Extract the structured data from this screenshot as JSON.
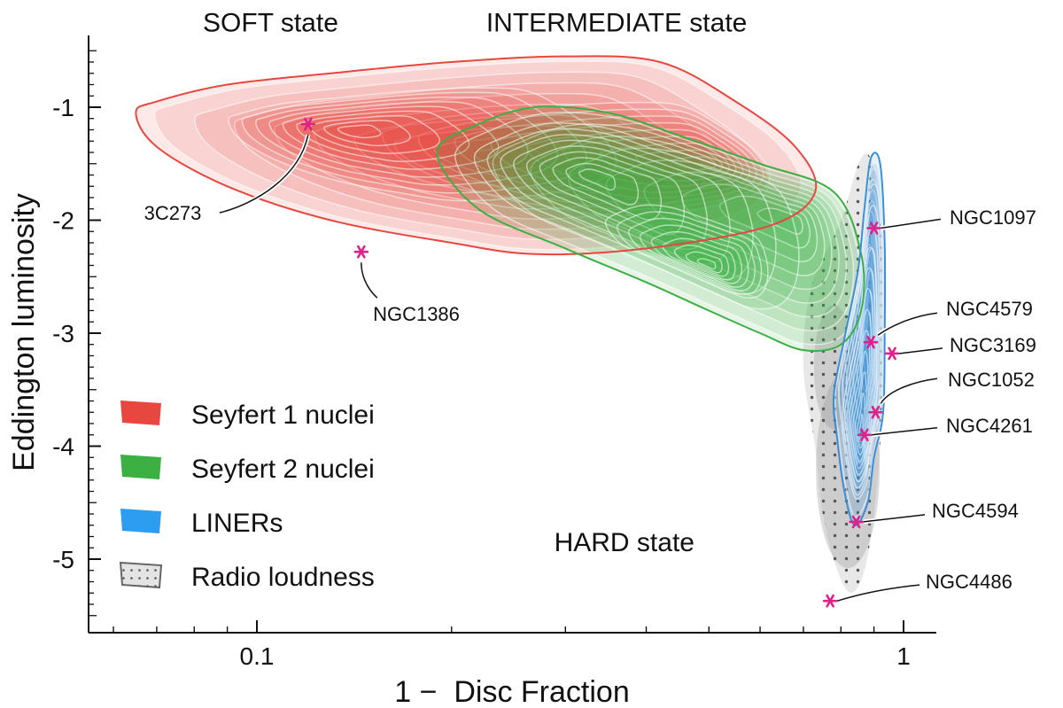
{
  "chart_data": {
    "type": "contour",
    "xlabel": "1 −  Disc Fraction",
    "ylabel": "Eddington luminosity",
    "xscale": "log",
    "xlim": [
      0.055,
      1.1
    ],
    "ylim": [
      -5.6,
      -0.45
    ],
    "xticks": [
      {
        "value": 0.1,
        "label": "0.1"
      },
      {
        "value": 1,
        "label": "1"
      }
    ],
    "yticks": [
      {
        "value": -1,
        "label": "-1"
      },
      {
        "value": -2,
        "label": "-2"
      },
      {
        "value": -3,
        "label": "-3"
      },
      {
        "value": -4,
        "label": "-4"
      },
      {
        "value": -5,
        "label": "-5"
      }
    ],
    "state_labels": [
      {
        "text": "SOFT state",
        "x": 0.105,
        "y": -0.25
      },
      {
        "text": "INTERMEDIATE state",
        "x": 0.36,
        "y": -0.25
      },
      {
        "text": "HARD state",
        "x": 0.37,
        "y": -4.85
      }
    ],
    "series": [
      {
        "name": "Seyfert 1 nuclei",
        "color": "#e8473f",
        "cores": [
          {
            "x": 0.25,
            "y": -1.45,
            "weight": 1.0
          },
          {
            "x": 0.5,
            "y": -1.5,
            "weight": 0.6
          },
          {
            "x": 0.14,
            "y": -1.2,
            "weight": 0.6
          }
        ],
        "outline": [
          [
            0.065,
            -1.05
          ],
          [
            0.07,
            -0.95
          ],
          [
            0.09,
            -0.8
          ],
          [
            0.13,
            -0.7
          ],
          [
            0.2,
            -0.6
          ],
          [
            0.3,
            -0.55
          ],
          [
            0.42,
            -0.6
          ],
          [
            0.55,
            -0.95
          ],
          [
            0.68,
            -1.35
          ],
          [
            0.73,
            -1.75
          ],
          [
            0.62,
            -2.05
          ],
          [
            0.4,
            -2.25
          ],
          [
            0.27,
            -2.3
          ],
          [
            0.2,
            -2.2
          ],
          [
            0.13,
            -2.0
          ],
          [
            0.09,
            -1.7
          ],
          [
            0.07,
            -1.35
          ]
        ]
      },
      {
        "name": "Seyfert 2 nuclei",
        "color": "#3cb043",
        "cores": [
          {
            "x": 0.68,
            "y": -2.0,
            "weight": 1.0
          },
          {
            "x": 0.33,
            "y": -1.6,
            "weight": 0.8
          },
          {
            "x": 0.5,
            "y": -2.4,
            "weight": 0.4
          }
        ],
        "outline": [
          [
            0.19,
            -1.4
          ],
          [
            0.22,
            -1.15
          ],
          [
            0.27,
            -1.0
          ],
          [
            0.35,
            -1.05
          ],
          [
            0.45,
            -1.25
          ],
          [
            0.6,
            -1.5
          ],
          [
            0.78,
            -1.75
          ],
          [
            0.86,
            -2.3
          ],
          [
            0.86,
            -2.8
          ],
          [
            0.8,
            -3.1
          ],
          [
            0.7,
            -3.15
          ],
          [
            0.6,
            -3.0
          ],
          [
            0.5,
            -2.8
          ],
          [
            0.4,
            -2.55
          ],
          [
            0.3,
            -2.25
          ],
          [
            0.22,
            -1.9
          ]
        ]
      },
      {
        "name": "LINERs",
        "color": "#3b8fd9",
        "cores": [
          {
            "x": 0.88,
            "y": -2.4,
            "weight": 0.9
          },
          {
            "x": 0.88,
            "y": -3.2,
            "weight": 1.0
          },
          {
            "x": 0.86,
            "y": -3.9,
            "weight": 0.7
          }
        ],
        "outline": [
          [
            0.89,
            -1.45
          ],
          [
            0.92,
            -1.5
          ],
          [
            0.935,
            -2.2
          ],
          [
            0.935,
            -3.0
          ],
          [
            0.93,
            -3.7
          ],
          [
            0.9,
            -4.1
          ],
          [
            0.88,
            -4.5
          ],
          [
            0.84,
            -4.7
          ],
          [
            0.81,
            -4.4
          ],
          [
            0.79,
            -3.95
          ],
          [
            0.78,
            -3.55
          ],
          [
            0.81,
            -3.05
          ],
          [
            0.85,
            -2.45
          ],
          [
            0.87,
            -1.9
          ]
        ]
      },
      {
        "name": "Radio loudness",
        "color": "#8a8a8a",
        "cores": [
          {
            "x": 0.82,
            "y": -4.2,
            "weight": 0.8
          },
          {
            "x": 0.78,
            "y": -3.3,
            "weight": 0.5
          }
        ],
        "outline": [
          [
            0.86,
            -1.45
          ],
          [
            0.9,
            -1.55
          ],
          [
            0.93,
            -2.3
          ],
          [
            0.93,
            -3.2
          ],
          [
            0.92,
            -4.0
          ],
          [
            0.9,
            -4.6
          ],
          [
            0.87,
            -5.1
          ],
          [
            0.83,
            -5.3
          ],
          [
            0.79,
            -5.1
          ],
          [
            0.75,
            -4.6
          ],
          [
            0.73,
            -4.0
          ],
          [
            0.7,
            -3.3
          ],
          [
            0.72,
            -2.6
          ],
          [
            0.8,
            -2.0
          ]
        ]
      }
    ],
    "points": [
      {
        "name": "3C273",
        "x": 0.12,
        "y": -1.15
      },
      {
        "name": "NGC1386",
        "x": 0.145,
        "y": -2.28
      },
      {
        "name": "NGC1097",
        "x": 0.9,
        "y": -2.07
      },
      {
        "name": "NGC4579",
        "x": 0.89,
        "y": -3.08
      },
      {
        "name": "NGC3169",
        "x": 0.96,
        "y": -3.18
      },
      {
        "name": "NGC1052",
        "x": 0.905,
        "y": -3.7
      },
      {
        "name": "NGC4261",
        "x": 0.87,
        "y": -3.9
      },
      {
        "name": "NGC4594",
        "x": 0.845,
        "y": -4.67
      },
      {
        "name": "NGC4486",
        "x": 0.77,
        "y": -5.37
      }
    ],
    "legend": {
      "position": "bottom-left",
      "items": [
        {
          "label": "Seyfert 1 nuclei",
          "color": "#e8473f",
          "style": "solid"
        },
        {
          "label": "Seyfert 2 nuclei",
          "color": "#3cb043",
          "style": "solid"
        },
        {
          "label": "LINERs",
          "color": "#2d9df2",
          "style": "solid"
        },
        {
          "label": "Radio loudness",
          "color": "#9a9a9a",
          "style": "dotted"
        }
      ]
    },
    "grid": false,
    "marker_color": "#e0218a"
  }
}
